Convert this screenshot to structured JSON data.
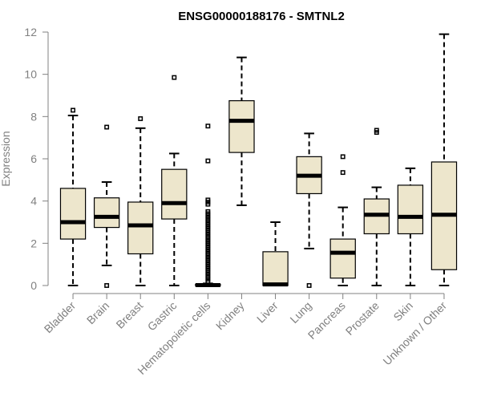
{
  "chart_data": {
    "type": "box",
    "title": "ENSG00000188176 - SMTNL2",
    "xlabel": "",
    "ylabel": "Expression",
    "ylim": [
      0,
      12
    ],
    "yticks": [
      0,
      2,
      4,
      6,
      8,
      10,
      12
    ],
    "box_color": "#ede6cc",
    "categories": [
      "Bladder",
      "Brain",
      "Breast",
      "Gastric",
      "Hematopoietic cells",
      "Kidney",
      "Liver",
      "Lung",
      "Pancreas",
      "Prostate",
      "Skin",
      "Unknown / Other"
    ],
    "boxes": [
      {
        "low": 0.0,
        "q1": 2.2,
        "median": 3.0,
        "q3": 4.6,
        "high": 8.05,
        "outliers": [
          8.3
        ]
      },
      {
        "low": 0.95,
        "q1": 2.75,
        "median": 3.25,
        "q3": 4.15,
        "high": 4.9,
        "outliers": [
          7.5,
          0.0
        ]
      },
      {
        "low": 0.0,
        "q1": 1.5,
        "median": 2.85,
        "q3": 3.95,
        "high": 7.45,
        "outliers": [
          7.9
        ]
      },
      {
        "low": 0.0,
        "q1": 3.15,
        "median": 3.9,
        "q3": 5.5,
        "high": 6.25,
        "outliers": [
          9.85
        ]
      },
      {
        "low": 0.0,
        "q1": 0.0,
        "median": 0.02,
        "q3": 0.05,
        "high": 0.1,
        "outliers": [
          0.2,
          0.3,
          0.4,
          0.5,
          0.6,
          0.7,
          0.8,
          0.9,
          1.0,
          1.1,
          1.2,
          1.3,
          1.4,
          1.5,
          1.6,
          1.7,
          1.8,
          1.9,
          2.0,
          2.1,
          2.2,
          2.3,
          2.4,
          2.5,
          2.6,
          2.7,
          2.8,
          2.9,
          3.0,
          3.1,
          3.2,
          3.3,
          3.4,
          3.5,
          3.85,
          3.95,
          4.05,
          5.9,
          7.55
        ]
      },
      {
        "low": 3.8,
        "q1": 6.3,
        "median": 7.8,
        "q3": 8.75,
        "high": 10.8,
        "outliers": []
      },
      {
        "low": 0.0,
        "q1": 0.0,
        "median": 0.05,
        "q3": 1.6,
        "high": 3.0,
        "outliers": []
      },
      {
        "low": 1.75,
        "q1": 4.35,
        "median": 5.2,
        "q3": 6.1,
        "high": 7.2,
        "outliers": [
          0.0
        ]
      },
      {
        "low": 0.0,
        "q1": 0.35,
        "median": 1.55,
        "q3": 2.2,
        "high": 3.7,
        "outliers": [
          5.35,
          6.1
        ]
      },
      {
        "low": 0.0,
        "q1": 2.45,
        "median": 3.35,
        "q3": 4.1,
        "high": 4.65,
        "outliers": [
          7.25,
          7.35
        ]
      },
      {
        "low": 0.0,
        "q1": 2.45,
        "median": 3.25,
        "q3": 4.75,
        "high": 5.55,
        "outliers": []
      },
      {
        "low": 0.0,
        "q1": 0.75,
        "median": 3.35,
        "q3": 5.85,
        "high": 11.9,
        "outliers": []
      }
    ]
  }
}
